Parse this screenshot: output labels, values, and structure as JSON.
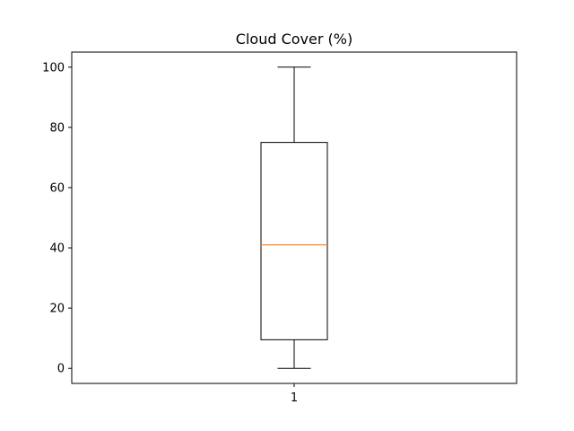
{
  "chart_data": {
    "type": "box",
    "title": "Cloud Cover (%)",
    "xlabel": "",
    "ylabel": "",
    "categories": [
      "1"
    ],
    "series": [
      {
        "min": 0,
        "q1": 9.5,
        "median": 41,
        "q3": 75,
        "max": 100
      }
    ],
    "ylim": [
      -5,
      105
    ],
    "yticks": [
      0,
      20,
      40,
      60,
      80,
      100
    ],
    "grid": false,
    "colors": {
      "box": "#000000",
      "median": "#ff7f0e",
      "axes": "#000000"
    }
  }
}
